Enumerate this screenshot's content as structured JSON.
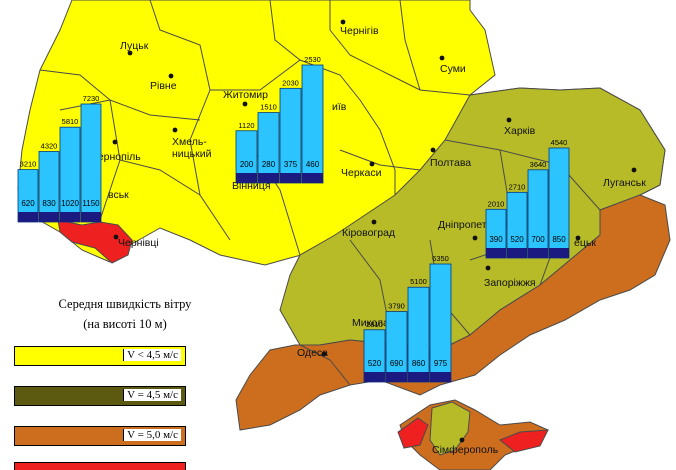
{
  "colors": {
    "zone_lt45": "#ffff00",
    "zone_45": "#b7bb28",
    "zone_50": "#cd6e1e",
    "zone_55": "#ef2020",
    "bar_fill": "#2cc4ff",
    "bar_base": "#1a1a80",
    "border": "#4a4a4a"
  },
  "cities": [
    {
      "id": "lutsk",
      "name": "Луцьк"
    },
    {
      "id": "rivne",
      "name": "Рівне"
    },
    {
      "id": "khmelnytskyi",
      "name": "Хмель-\nницький"
    },
    {
      "id": "ternopil",
      "name": "Тернопіль"
    },
    {
      "id": "zhytomyr",
      "name": "Житомир"
    },
    {
      "id": "vinnytsia",
      "name": "Вінниця"
    },
    {
      "id": "chernihiv",
      "name": "Чернігів"
    },
    {
      "id": "sumy",
      "name": "Суми"
    },
    {
      "id": "kyiv",
      "name": "иїв"
    },
    {
      "id": "cherkasy",
      "name": "Черкаси"
    },
    {
      "id": "poltava",
      "name": "Полтава"
    },
    {
      "id": "kharkiv",
      "name": "Харків"
    },
    {
      "id": "luhansk",
      "name": "Луганськ"
    },
    {
      "id": "kirovohrad",
      "name": "Кіровоград"
    },
    {
      "id": "dnipro",
      "name": "Дніпропет"
    },
    {
      "id": "zaporizhzhia",
      "name": "Запоріжжя"
    },
    {
      "id": "mykolaiv",
      "name": "Микола"
    },
    {
      "id": "odesa",
      "name": "Одеса"
    },
    {
      "id": "simferopol",
      "name": "Сімферополь"
    },
    {
      "id": "chernivtsi",
      "name": "Чернівці"
    },
    {
      "id": "lviv",
      "name": "вськ"
    },
    {
      "id": "donetsk",
      "name": "ецьк"
    }
  ],
  "bar_groups": [
    {
      "id": "west",
      "top_values": [
        3210,
        4320,
        5810,
        7230
      ],
      "inner_values": [
        620,
        830,
        1020,
        1150
      ]
    },
    {
      "id": "center",
      "top_values": [
        1120,
        1510,
        2030,
        2530
      ],
      "inner_values": [
        200,
        280,
        375,
        460
      ]
    },
    {
      "id": "east",
      "top_values": [
        2010,
        2710,
        3640,
        4540
      ],
      "inner_values": [
        390,
        520,
        700,
        850
      ]
    },
    {
      "id": "south",
      "top_values": [
        2810,
        3790,
        5100,
        6350
      ],
      "inner_values": [
        520,
        690,
        860,
        975
      ]
    }
  ],
  "legend": {
    "title_line1": "Середня швидкість вітру",
    "title_line2": "(на висоті 10 м)",
    "items": [
      {
        "label": "V < 4,5 м/с",
        "color": "#ffff00"
      },
      {
        "label": "V = 4,5 м/с",
        "color": "#5b5a10"
      },
      {
        "label": "V = 5,0 м/с",
        "color": "#cd6e1e"
      },
      {
        "label": "",
        "color": "#ef2020"
      }
    ]
  }
}
